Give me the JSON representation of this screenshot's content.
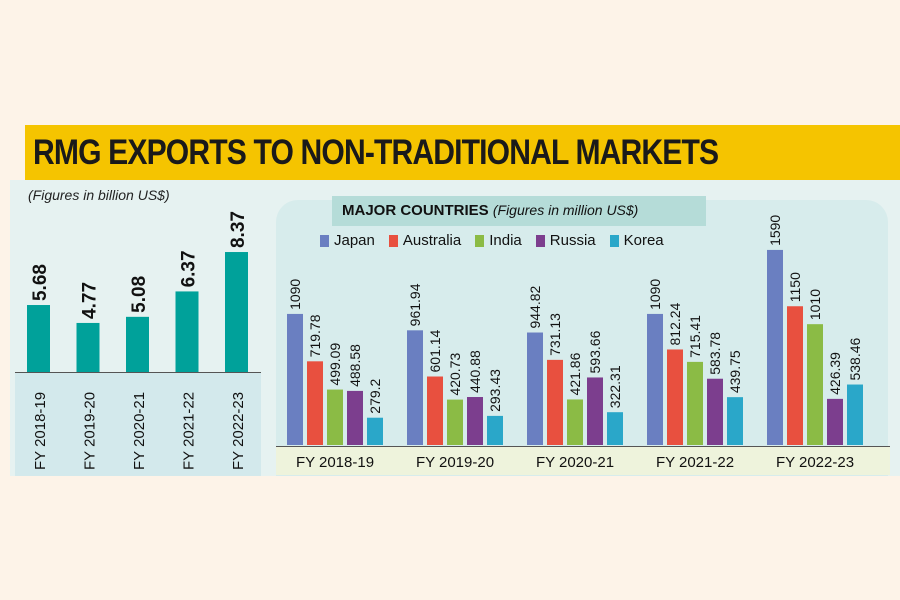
{
  "title": "RMG EXPORTS TO NON-TRADITIONAL MARKETS",
  "colors": {
    "banner": "#f5c400",
    "total_bar": "#00a19a",
    "Japan": "#6a7fc1",
    "Australia": "#e8503f",
    "India": "#8bbb45",
    "Russia": "#7c3e8e",
    "Korea": "#2aa7c9"
  },
  "chart_data": [
    {
      "type": "bar",
      "title": "RMG EXPORTS TO NON-TRADITIONAL MARKETS",
      "subtitle": "(Figures in billion US$)",
      "categories": [
        "FY 2018-19",
        "FY 2019-20",
        "FY 2020-21",
        "FY 2021-22",
        "FY 2022-23"
      ],
      "values": [
        5.68,
        4.77,
        5.08,
        6.37,
        8.37
      ],
      "value_labels": [
        "5.68",
        "4.77",
        "5.08",
        "6.37",
        "8.37"
      ]
    },
    {
      "type": "bar",
      "title": "MAJOR COUNTRIES",
      "subtitle": "(Figures in million US$)",
      "legend": "top",
      "categories": [
        "FY 2018-19",
        "FY 2019-20",
        "FY 2020-21",
        "FY 2021-22",
        "FY 2022-23"
      ],
      "series": [
        {
          "name": "Japan",
          "values": [
            1090,
            961.94,
            944.82,
            1090,
            1590
          ],
          "labels": [
            "1090",
            "961.94",
            "944.82",
            "1090",
            "1590"
          ]
        },
        {
          "name": "Australia",
          "values": [
            719.78,
            601.14,
            731.13,
            812.24,
            1150
          ],
          "labels": [
            "719.78",
            "601.14",
            "731.13",
            "812.24",
            "1150"
          ]
        },
        {
          "name": "India",
          "values": [
            499.09,
            420.73,
            421.86,
            715.41,
            1010
          ],
          "labels": [
            "499.09",
            "420.73",
            "421.86",
            "715.41",
            "1010"
          ]
        },
        {
          "name": "Russia",
          "values": [
            488.58,
            440.88,
            593.66,
            583.78,
            426.39
          ],
          "labels": [
            "488.58",
            "440.88",
            "593.66",
            "583.78",
            "426.39"
          ]
        },
        {
          "name": "Korea",
          "values": [
            279.2,
            293.43,
            322.31,
            439.75,
            538.46
          ],
          "labels": [
            "279.2",
            "293.43",
            "322.31",
            "439.75",
            "538.46"
          ]
        }
      ]
    }
  ]
}
